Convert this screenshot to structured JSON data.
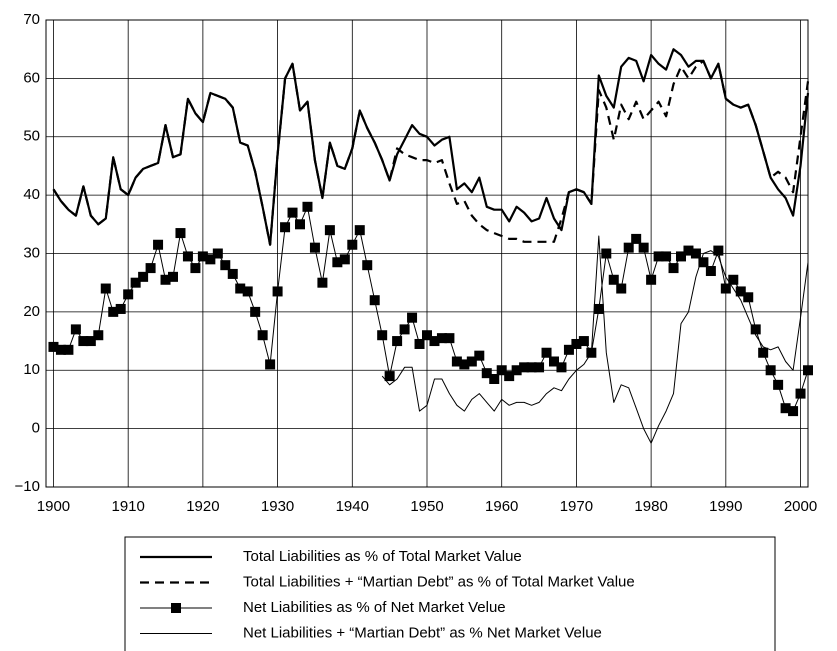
{
  "chart_data": {
    "type": "line",
    "x": [
      1900,
      1901,
      1902,
      1903,
      1904,
      1905,
      1906,
      1907,
      1908,
      1909,
      1910,
      1911,
      1912,
      1913,
      1914,
      1915,
      1916,
      1917,
      1918,
      1919,
      1920,
      1921,
      1922,
      1923,
      1924,
      1925,
      1926,
      1927,
      1928,
      1929,
      1930,
      1931,
      1932,
      1933,
      1934,
      1935,
      1936,
      1937,
      1938,
      1939,
      1940,
      1941,
      1942,
      1943,
      1944,
      1945,
      1946,
      1947,
      1948,
      1949,
      1950,
      1951,
      1952,
      1953,
      1954,
      1955,
      1956,
      1957,
      1958,
      1959,
      1960,
      1961,
      1962,
      1963,
      1964,
      1965,
      1966,
      1967,
      1968,
      1969,
      1970,
      1971,
      1972,
      1973,
      1974,
      1975,
      1976,
      1977,
      1978,
      1979,
      1980,
      1981,
      1982,
      1983,
      1984,
      1985,
      1986,
      1987,
      1988,
      1989,
      1990,
      1991,
      1992,
      1993,
      1994,
      1995,
      1996,
      1997,
      1998,
      1999,
      2000,
      2001
    ],
    "xlim": [
      1899,
      2001
    ],
    "xticks": [
      1900,
      1910,
      1920,
      1930,
      1940,
      1950,
      1960,
      1970,
      1980,
      1990,
      2000
    ],
    "ylim": [
      -10,
      70
    ],
    "yticks": [
      {
        "value": -10,
        "label": "−10"
      },
      0,
      10,
      20,
      30,
      40,
      50,
      60,
      70
    ],
    "grid": true,
    "series": [
      {
        "name": "Total Liabilities as % of Total Market Value",
        "color": "#000000",
        "width": 2.2,
        "dash": "none",
        "marker": "none",
        "values": [
          41,
          39,
          37.5,
          36.5,
          41.5,
          36.5,
          35,
          36,
          46.5,
          41,
          40,
          43,
          44.5,
          45,
          45.5,
          52,
          46.5,
          47,
          56.5,
          54,
          52.5,
          57.5,
          57,
          56.5,
          55,
          49,
          48.5,
          44,
          38,
          31.5,
          47,
          60,
          62.5,
          54.5,
          56,
          46,
          39.5,
          49,
          45,
          44.5,
          48,
          54.5,
          51.5,
          49,
          46,
          42.5,
          47,
          49.5,
          52,
          50.5,
          50,
          48.5,
          49.5,
          50,
          41,
          42,
          40.5,
          43,
          38,
          37.5,
          37.5,
          35.5,
          38,
          37,
          35.5,
          36,
          39.5,
          36,
          34,
          40.5,
          41,
          40.5,
          38.5,
          60.5,
          57,
          55,
          62,
          63.5,
          63,
          59.5,
          64,
          62.5,
          61.5,
          65,
          64,
          62,
          63,
          63,
          60,
          62.5,
          56.5,
          55.5,
          55,
          55.5,
          52,
          47.5,
          43,
          41,
          39.5,
          36.5,
          45,
          57.5
        ]
      },
      {
        "name": "Total Liabilities + “Martian Debt” as % of Total Market Value",
        "color": "#000000",
        "width": 2.2,
        "dash": "9 6",
        "marker": "none",
        "values": [
          41,
          39,
          37.5,
          36.5,
          41.5,
          36.5,
          35,
          36,
          46.5,
          41,
          40,
          43,
          44.5,
          45,
          45.5,
          52,
          46.5,
          47,
          56.5,
          54,
          52.5,
          57.5,
          57,
          56.5,
          55,
          49,
          48.5,
          44,
          38,
          31.5,
          47,
          60,
          62.5,
          54.5,
          56,
          46,
          39.5,
          49,
          45,
          44.5,
          48,
          54.5,
          51.5,
          49,
          46,
          42.5,
          48,
          47,
          46.5,
          46,
          46,
          45.5,
          46,
          42,
          38.5,
          39,
          36.5,
          35,
          34,
          33.5,
          33,
          32.5,
          32.5,
          32,
          32,
          32,
          32,
          32,
          36,
          40.5,
          41,
          40.5,
          38.5,
          58,
          55,
          49.5,
          55.5,
          53,
          56,
          53,
          54.5,
          56,
          53.5,
          59,
          62,
          60,
          62,
          63,
          60,
          62.5,
          56.5,
          55.5,
          55,
          55.5,
          52,
          47.5,
          43,
          44,
          43,
          40.5,
          50,
          59.5
        ]
      },
      {
        "name": "Net Liabilities as % of Net Market Velue",
        "color": "#000000",
        "width": 1,
        "dash": "none",
        "marker": "square",
        "values": [
          14,
          13.5,
          13.5,
          17,
          15,
          15,
          16,
          24,
          20,
          20.5,
          23,
          25,
          26,
          27.5,
          31.5,
          25.5,
          26,
          33.5,
          29.5,
          27.5,
          29.5,
          29,
          30,
          28,
          26.5,
          24,
          23.5,
          20,
          16,
          11,
          23.5,
          34.5,
          37,
          35,
          38,
          31,
          25,
          34,
          28.5,
          29,
          31.5,
          34,
          28,
          22,
          16,
          9,
          15,
          17,
          19,
          14.5,
          16,
          15,
          15.5,
          15.5,
          11.5,
          11,
          11.5,
          12.5,
          9.5,
          8.5,
          10,
          9,
          10,
          10.5,
          10.5,
          10.5,
          13,
          11.5,
          10.5,
          13.5,
          14.5,
          15,
          13,
          20.5,
          30,
          25.5,
          24,
          31,
          32.5,
          31,
          25.5,
          29.5,
          29.5,
          27.5,
          29.5,
          30.5,
          30,
          28.5,
          27,
          30.5,
          24,
          25.5,
          23.5,
          22.5,
          17,
          13,
          10,
          7.5,
          3.5,
          3,
          6,
          10
        ]
      },
      {
        "name": "Net Liabilities + “Martian Debt” as % Net Market Velue",
        "color": "#000000",
        "width": 1,
        "dash": "none",
        "marker": "none",
        "values": [
          null,
          null,
          null,
          null,
          null,
          null,
          null,
          null,
          null,
          null,
          null,
          null,
          null,
          null,
          null,
          null,
          null,
          null,
          null,
          null,
          null,
          null,
          null,
          null,
          null,
          null,
          null,
          null,
          null,
          null,
          null,
          null,
          null,
          null,
          null,
          null,
          null,
          null,
          null,
          null,
          null,
          null,
          null,
          null,
          9,
          7.5,
          8.5,
          10.5,
          10.5,
          3,
          4,
          8.5,
          8.5,
          6,
          4,
          3,
          5,
          6,
          4.5,
          3,
          5,
          4,
          4.5,
          4.5,
          4,
          4.5,
          6,
          7,
          6.5,
          8.5,
          10,
          11,
          13,
          33,
          13,
          4.5,
          7.5,
          7,
          3.5,
          0,
          -2.5,
          0.5,
          3,
          6,
          18,
          20,
          26,
          30,
          30.5,
          29.5,
          26,
          24,
          22,
          19,
          16,
          14,
          13.5,
          14,
          11.5,
          10,
          19,
          28.5
        ]
      }
    ]
  }
}
